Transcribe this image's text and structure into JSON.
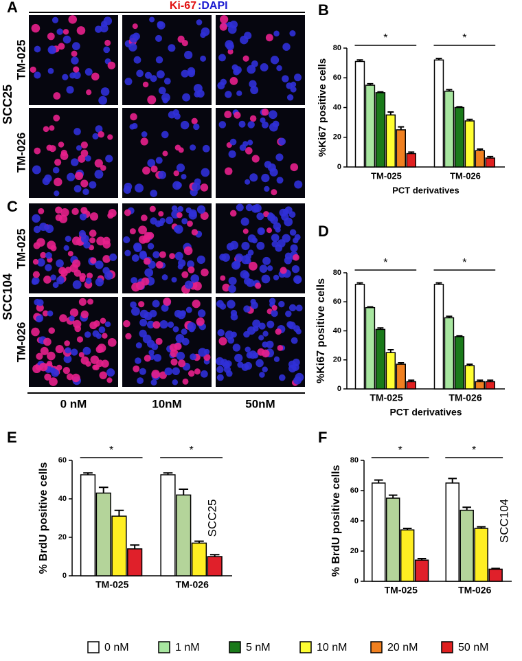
{
  "figure": {
    "panel_labels": [
      "A",
      "B",
      "C",
      "D",
      "E",
      "F"
    ],
    "stain": {
      "marker": "Ki-67",
      "counterstain": ":DAPI"
    },
    "cell_lines": [
      "SCC25",
      "SCC104"
    ],
    "treatments": [
      "TM-025",
      "TM-026"
    ],
    "doses": [
      "0 nM",
      "10nM",
      "50nM"
    ]
  },
  "chart_data": [
    {
      "type": "bar",
      "y_label": "%Ki67 positive cells",
      "x_label": "PCT derivatives",
      "categories": [
        "TM-025",
        "TM-026"
      ],
      "ylim": [
        0,
        80
      ],
      "yticks": [
        0,
        20,
        40,
        60,
        80
      ],
      "annotations": [
        "*",
        "*"
      ],
      "series": [
        {
          "name": "0 nM",
          "color": "#ffffff",
          "values": [
            71,
            72
          ],
          "errors": [
            1,
            1
          ]
        },
        {
          "name": "1 nM",
          "color": "#a8e6a0",
          "values": [
            55,
            51
          ],
          "errors": [
            1,
            1
          ]
        },
        {
          "name": "5 nM",
          "color": "#1a7a1a",
          "values": [
            50,
            40
          ],
          "errors": [
            0.5,
            0.5
          ]
        },
        {
          "name": "10 nM",
          "color": "#ffff33",
          "values": [
            35,
            31
          ],
          "errors": [
            2,
            1
          ]
        },
        {
          "name": "20 nM",
          "color": "#f08020",
          "values": [
            25,
            11
          ],
          "errors": [
            2,
            1
          ]
        },
        {
          "name": "50 nM",
          "color": "#e02020",
          "values": [
            9,
            6
          ],
          "errors": [
            1,
            1
          ]
        }
      ]
    },
    {
      "type": "bar",
      "y_label": "%Ki67 positive cells",
      "x_label": "PCT derivatives",
      "categories": [
        "TM-025",
        "TM-026"
      ],
      "ylim": [
        0,
        80
      ],
      "yticks": [
        0,
        20,
        40,
        60,
        80
      ],
      "annotations": [
        "*",
        "*"
      ],
      "series": [
        {
          "name": "0 nM",
          "color": "#ffffff",
          "values": [
            72,
            72
          ],
          "errors": [
            1,
            1
          ]
        },
        {
          "name": "1 nM",
          "color": "#a8e6a0",
          "values": [
            56,
            49
          ],
          "errors": [
            0.5,
            1
          ]
        },
        {
          "name": "5 nM",
          "color": "#1a7a1a",
          "values": [
            41,
            36
          ],
          "errors": [
            1,
            0.5
          ]
        },
        {
          "name": "10 nM",
          "color": "#ffff33",
          "values": [
            25,
            16
          ],
          "errors": [
            2,
            1
          ]
        },
        {
          "name": "20 nM",
          "color": "#f08020",
          "values": [
            17,
            5
          ],
          "errors": [
            1,
            1
          ]
        },
        {
          "name": "50 nM",
          "color": "#e02020",
          "values": [
            5,
            5
          ],
          "errors": [
            1,
            1
          ]
        }
      ]
    },
    {
      "type": "bar",
      "y_label": "% BrdU positive cells",
      "label": "SCC25",
      "categories": [
        "TM-025",
        "TM-026"
      ],
      "ylim": [
        0,
        60
      ],
      "yticks": [
        0,
        20,
        40,
        60
      ],
      "annotations": [
        "*",
        "*"
      ],
      "series": [
        {
          "name": "0 nM",
          "color": "#ffffff",
          "values": [
            52.5,
            52.5
          ],
          "errors": [
            1,
            1
          ]
        },
        {
          "name": "1 nM",
          "color": "#b4d49a",
          "values": [
            43,
            42
          ],
          "errors": [
            3,
            3
          ]
        },
        {
          "name": "10 nM",
          "color": "#ffee22",
          "values": [
            31,
            17
          ],
          "errors": [
            3,
            1
          ]
        },
        {
          "name": "50 nM",
          "color": "#e0202a",
          "values": [
            14,
            10
          ],
          "errors": [
            2,
            1
          ]
        }
      ]
    },
    {
      "type": "bar",
      "y_label": "% BrdU positive cells",
      "label": "SCC104",
      "categories": [
        "TM-025",
        "TM-026"
      ],
      "ylim": [
        0,
        80
      ],
      "yticks": [
        0,
        20,
        40,
        60,
        80
      ],
      "annotations": [
        "*",
        "*"
      ],
      "series": [
        {
          "name": "0 nM",
          "color": "#ffffff",
          "values": [
            65,
            65
          ],
          "errors": [
            2,
            3
          ]
        },
        {
          "name": "1 nM",
          "color": "#b4d49a",
          "values": [
            55,
            47
          ],
          "errors": [
            2,
            2
          ]
        },
        {
          "name": "10 nM",
          "color": "#ffee22",
          "values": [
            34,
            35
          ],
          "errors": [
            1,
            1
          ]
        },
        {
          "name": "50 nM",
          "color": "#e0202a",
          "values": [
            14,
            8
          ],
          "errors": [
            1,
            0.5
          ]
        }
      ]
    }
  ]
}
